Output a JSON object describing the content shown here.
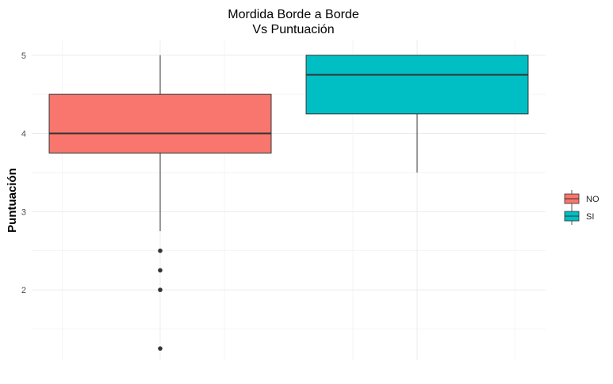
{
  "chart_data": {
    "type": "boxplot",
    "title_lines": [
      "Mordida Borde a Borde",
      "Vs Puntuación"
    ],
    "xlabel": "",
    "ylabel": "Puntuación",
    "ylim": [
      1.1,
      5.2
    ],
    "yticks": [
      2,
      3,
      4,
      5
    ],
    "grid": true,
    "legend": {
      "position": "right"
    },
    "categories": [
      "NO",
      "SI"
    ],
    "boxes": [
      {
        "name": "NO",
        "color": "#F8766D",
        "whisker_low": 2.75,
        "q1": 3.75,
        "median": 4.0,
        "q3": 4.5,
        "whisker_high": 5.0,
        "outliers": [
          2.5,
          2.25,
          2.0,
          1.25
        ]
      },
      {
        "name": "SI",
        "color": "#00BFC4",
        "whisker_low": 3.5,
        "q1": 4.25,
        "median": 4.75,
        "q3": 5.0,
        "whisker_high": 5.0,
        "outliers": []
      }
    ]
  }
}
